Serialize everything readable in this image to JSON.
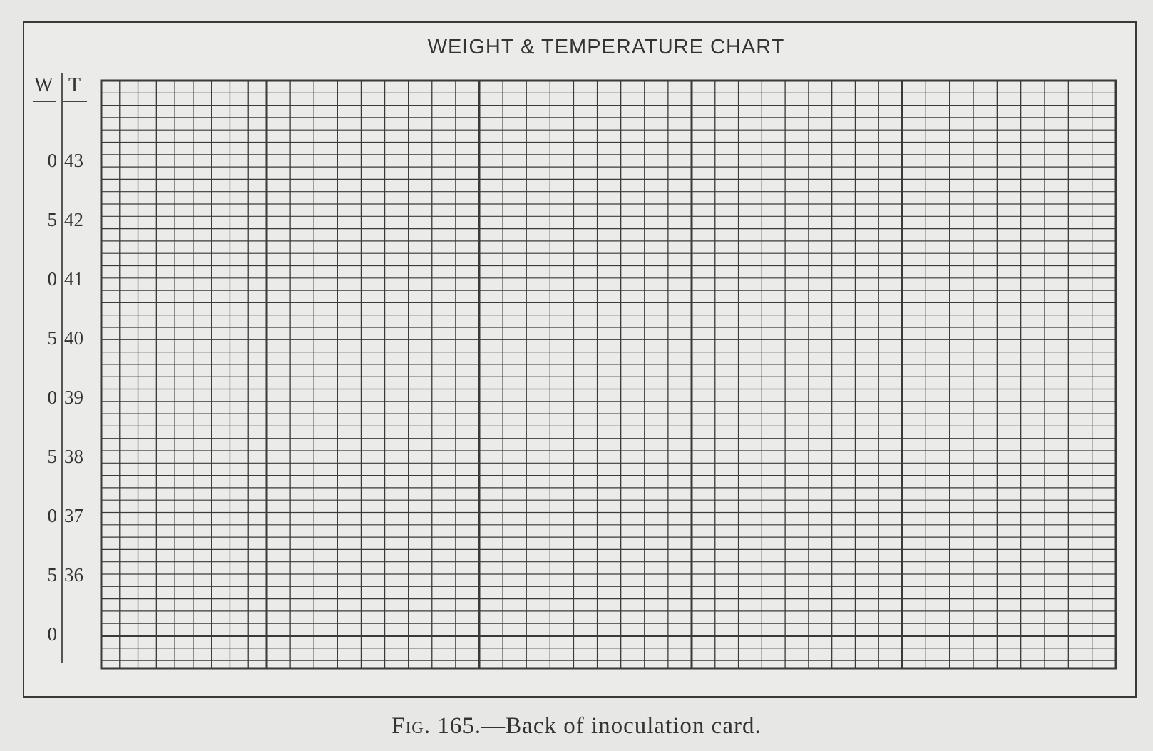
{
  "title": "WEIGHT & TEMPERATURE CHART",
  "headers": {
    "weight": "W",
    "temperature": "T"
  },
  "scale_rows": [
    {
      "w": "0",
      "t": "43"
    },
    {
      "w": "5",
      "t": "42"
    },
    {
      "w": "0",
      "t": "41"
    },
    {
      "w": "5",
      "t": "40"
    },
    {
      "w": "0",
      "t": "39"
    },
    {
      "w": "5",
      "t": "38"
    },
    {
      "w": "0",
      "t": "37"
    },
    {
      "w": "5",
      "t": "36"
    },
    {
      "w": "0",
      "t": ""
    }
  ],
  "caption": {
    "fig_label": "Fig.",
    "fig_number": "165.",
    "text": "—Back of inoculation card."
  }
}
